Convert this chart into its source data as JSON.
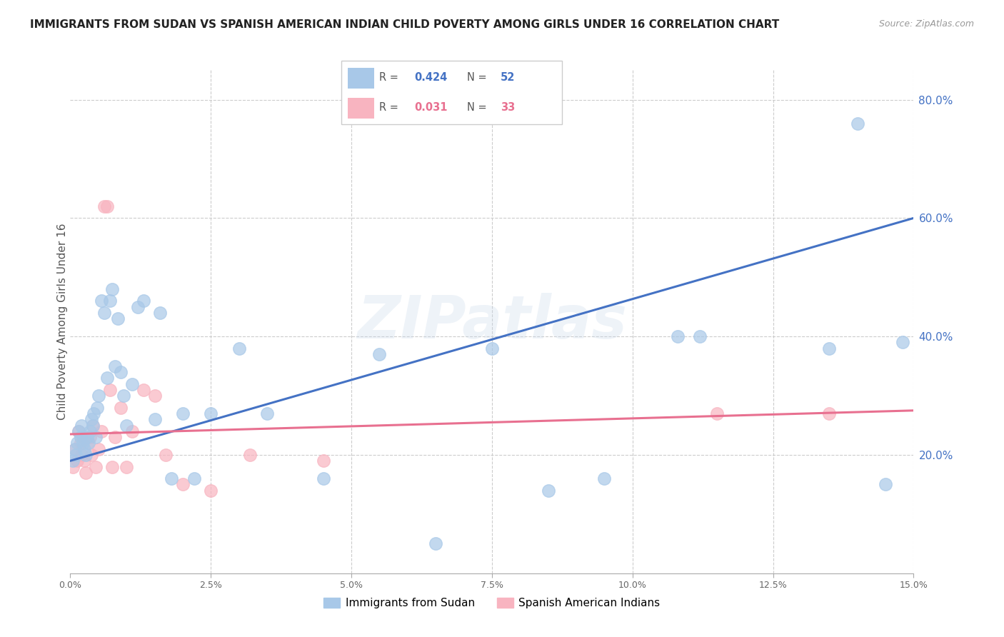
{
  "title": "IMMIGRANTS FROM SUDAN VS SPANISH AMERICAN INDIAN CHILD POVERTY AMONG GIRLS UNDER 16 CORRELATION CHART",
  "source": "Source: ZipAtlas.com",
  "ylabel": "Child Poverty Among Girls Under 16",
  "xlim": [
    0.0,
    15.0
  ],
  "ylim": [
    0.0,
    85.0
  ],
  "yticks": [
    20.0,
    40.0,
    60.0,
    80.0
  ],
  "xticks": [
    0.0,
    2.5,
    5.0,
    7.5,
    10.0,
    12.5,
    15.0
  ],
  "watermark_text": "ZIPatlas",
  "legend_r1": "0.424",
  "legend_n1": "52",
  "legend_r2": "0.031",
  "legend_n2": "33",
  "legend_label1": "Immigrants from Sudan",
  "legend_label2": "Spanish American Indians",
  "blue_color": "#a8c8e8",
  "pink_color": "#f8b4c0",
  "blue_line_color": "#4472c4",
  "pink_line_color": "#e87090",
  "blue_x": [
    0.05,
    0.08,
    0.1,
    0.12,
    0.15,
    0.18,
    0.2,
    0.22,
    0.25,
    0.28,
    0.3,
    0.32,
    0.35,
    0.38,
    0.4,
    0.42,
    0.45,
    0.48,
    0.5,
    0.55,
    0.6,
    0.65,
    0.7,
    0.75,
    0.8,
    0.85,
    0.9,
    0.95,
    1.0,
    1.1,
    1.2,
    1.3,
    1.5,
    1.6,
    1.8,
    2.0,
    2.2,
    2.5,
    3.0,
    3.5,
    4.5,
    5.5,
    6.5,
    7.5,
    8.5,
    9.5,
    10.8,
    11.2,
    13.5,
    14.0,
    14.5,
    14.8
  ],
  "blue_y": [
    19,
    21,
    20,
    22,
    24,
    23,
    25,
    22,
    21,
    20,
    23,
    22,
    24,
    26,
    25,
    27,
    23,
    28,
    30,
    46,
    44,
    33,
    46,
    48,
    35,
    43,
    34,
    30,
    25,
    32,
    45,
    46,
    26,
    44,
    16,
    27,
    16,
    27,
    38,
    27,
    16,
    37,
    5,
    38,
    14,
    16,
    40,
    40,
    38,
    76,
    15,
    39
  ],
  "pink_x": [
    0.05,
    0.08,
    0.12,
    0.15,
    0.18,
    0.2,
    0.22,
    0.25,
    0.28,
    0.3,
    0.35,
    0.38,
    0.4,
    0.45,
    0.5,
    0.55,
    0.6,
    0.65,
    0.7,
    0.75,
    0.8,
    0.9,
    1.0,
    1.1,
    1.3,
    1.5,
    1.7,
    2.0,
    2.5,
    3.2,
    4.5,
    11.5,
    13.5
  ],
  "pink_y": [
    18,
    21,
    19,
    24,
    22,
    20,
    23,
    19,
    17,
    22,
    23,
    20,
    25,
    18,
    21,
    24,
    62,
    62,
    31,
    18,
    23,
    28,
    18,
    24,
    31,
    30,
    20,
    15,
    14,
    20,
    19,
    27,
    27
  ],
  "blue_trend_x": [
    0.0,
    15.0
  ],
  "blue_trend_y": [
    19.0,
    60.0
  ],
  "pink_trend_x": [
    0.0,
    15.0
  ],
  "pink_trend_y": [
    23.5,
    27.5
  ]
}
